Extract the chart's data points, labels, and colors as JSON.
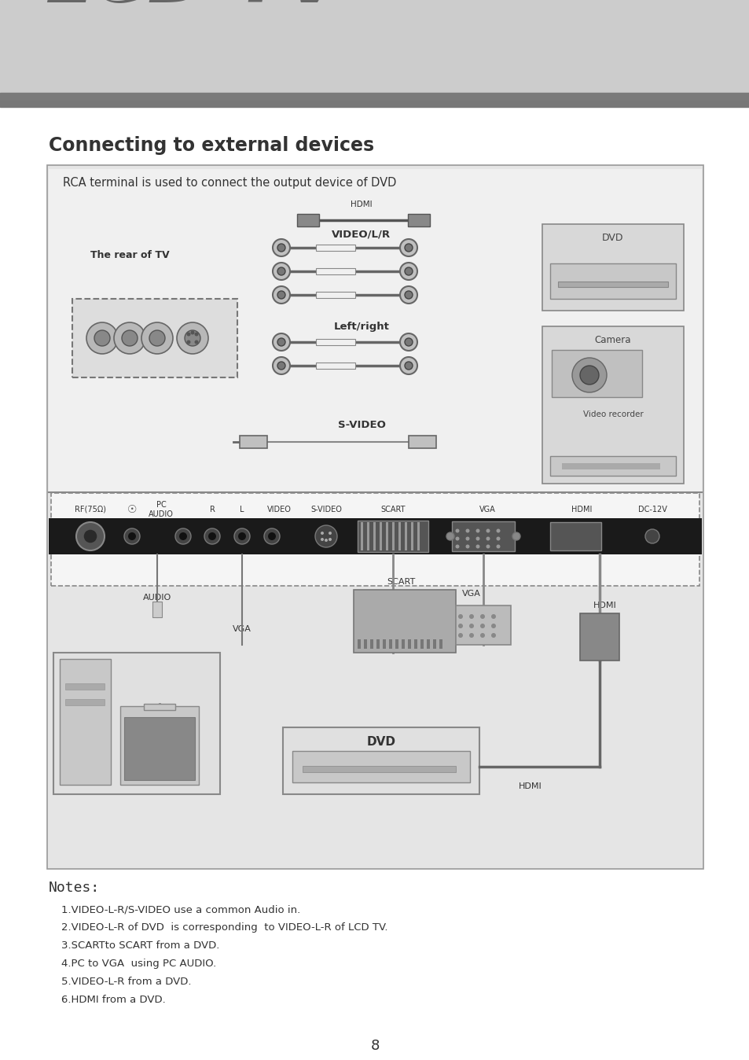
{
  "page_bg": "#ffffff",
  "header_bg": "#cccccc",
  "header_bar_color": "#7a7a7a",
  "header_text": "LCD TV",
  "header_text_color": "#888888",
  "section_title": "Connecting to external devices",
  "section_title_color": "#333333",
  "diagram_bg": "#e5e5e5",
  "diagram_border": "#999999",
  "diagram_text_top": "RCA terminal is used to connect the output device of DVD",
  "notes_title": "Notes:",
  "notes_lines": [
    "1.VIDEO-L-R/S-VIDEO use a common Audio in.",
    "2.VIDEO-L-R of DVD  is corresponding  to VIDEO-L-R of LCD TV.",
    "3.SCARTto SCART from a DVD.",
    "4.PC to VGA  using PC AUDIO.",
    "5.VIDEO-L-R from a DVD.",
    "6.HDMI from a DVD."
  ],
  "page_number": "8"
}
